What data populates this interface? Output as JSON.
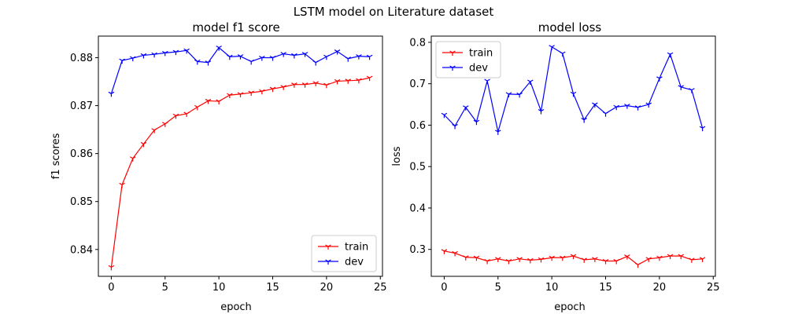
{
  "figure": {
    "suptitle": "LSTM model on Literature dataset",
    "colors": {
      "train": "#ff0000",
      "dev": "#0000ff",
      "axes": "#000000",
      "background": "#ffffff"
    }
  },
  "chart_data": [
    {
      "type": "line",
      "title": "model f1 score",
      "xlabel": "epoch",
      "ylabel": "f1 scores",
      "xlim": [
        -1.2,
        25.2
      ],
      "ylim": [
        0.8344,
        0.8845
      ],
      "xticks": [
        0,
        5,
        10,
        15,
        20,
        25
      ],
      "yticks": [
        0.84,
        0.85,
        0.86,
        0.87,
        0.88
      ],
      "ytick_labels": [
        "0.84",
        "0.85",
        "0.86",
        "0.87",
        "0.88"
      ],
      "grid": false,
      "legend": "lower-right",
      "x": [
        0,
        1,
        2,
        3,
        4,
        5,
        6,
        7,
        8,
        9,
        10,
        11,
        12,
        13,
        14,
        15,
        16,
        17,
        18,
        19,
        20,
        21,
        22,
        23,
        24
      ],
      "series": [
        {
          "name": "train",
          "color": "#ff0000",
          "marker": "tri-down",
          "values": [
            0.8363,
            0.8535,
            0.859,
            0.862,
            0.8649,
            0.8662,
            0.8679,
            0.8683,
            0.8697,
            0.871,
            0.8709,
            0.8722,
            0.8724,
            0.8727,
            0.873,
            0.8735,
            0.8739,
            0.8744,
            0.8744,
            0.8747,
            0.8743,
            0.8751,
            0.8752,
            0.8753,
            0.8758
          ]
        },
        {
          "name": "dev",
          "color": "#0000ff",
          "marker": "tri-down",
          "values": [
            0.8725,
            0.8794,
            0.8799,
            0.8805,
            0.8807,
            0.881,
            0.8812,
            0.8815,
            0.8792,
            0.879,
            0.8821,
            0.8802,
            0.8803,
            0.8792,
            0.88,
            0.88,
            0.8808,
            0.8805,
            0.8808,
            0.879,
            0.8802,
            0.8813,
            0.8798,
            0.8803,
            0.8802
          ]
        }
      ]
    },
    {
      "type": "line",
      "title": "model loss",
      "xlabel": "epoch",
      "ylabel": "loss",
      "xlim": [
        -1.2,
        25.2
      ],
      "ylim": [
        0.235,
        0.815
      ],
      "xticks": [
        0,
        5,
        10,
        15,
        20,
        25
      ],
      "yticks": [
        0.3,
        0.4,
        0.5,
        0.6,
        0.7,
        0.8
      ],
      "ytick_labels": [
        "0.3",
        "0.4",
        "0.5",
        "0.6",
        "0.7",
        "0.8"
      ],
      "grid": false,
      "legend": "upper-left",
      "x": [
        0,
        1,
        2,
        3,
        4,
        5,
        6,
        7,
        8,
        9,
        10,
        11,
        12,
        13,
        14,
        15,
        16,
        17,
        18,
        19,
        20,
        21,
        22,
        23,
        24
      ],
      "series": [
        {
          "name": "train",
          "color": "#ff0000",
          "marker": "tri-down",
          "values": [
            0.296,
            0.291,
            0.281,
            0.28,
            0.272,
            0.277,
            0.272,
            0.277,
            0.274,
            0.276,
            0.28,
            0.28,
            0.284,
            0.275,
            0.277,
            0.272,
            0.272,
            0.283,
            0.263,
            0.277,
            0.28,
            0.284,
            0.284,
            0.275,
            0.277
          ]
        },
        {
          "name": "dev",
          "color": "#0000ff",
          "marker": "tri-down",
          "values": [
            0.625,
            0.598,
            0.643,
            0.608,
            0.707,
            0.584,
            0.675,
            0.674,
            0.705,
            0.634,
            0.789,
            0.773,
            0.676,
            0.613,
            0.65,
            0.628,
            0.644,
            0.647,
            0.643,
            0.65,
            0.713,
            0.771,
            0.692,
            0.685,
            0.593
          ]
        }
      ]
    }
  ]
}
